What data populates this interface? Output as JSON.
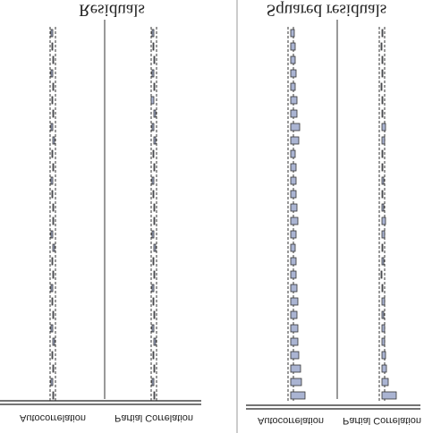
{
  "chart_data": [
    {
      "type": "correlogram",
      "title": "Residuals",
      "bound": 0.03,
      "series": [
        {
          "name": "Autocorrelation",
          "color": "#aab4d2",
          "values": [
            0.01,
            -0.02,
            0.01,
            -0.01,
            0.02,
            -0.02,
            0.01,
            -0.01,
            -0.02,
            0.01,
            -0.01,
            0.02,
            -0.02,
            0.01,
            0.01,
            -0.01,
            -0.02,
            0.01,
            -0.01,
            0.02,
            -0.02,
            0.01,
            -0.01,
            0.01,
            -0.02,
            0.01,
            -0.01,
            -0.02
          ]
        },
        {
          "name": "Partial Correlation",
          "color": "#aab4d2",
          "values": [
            0.01,
            -0.02,
            0.01,
            -0.01,
            0.02,
            -0.02,
            0.01,
            -0.01,
            -0.02,
            0.01,
            -0.01,
            0.02,
            -0.02,
            0.01,
            0.01,
            -0.01,
            -0.02,
            0.01,
            -0.01,
            0.02,
            -0.02,
            0.02,
            -0.03,
            0.01,
            -0.02,
            0.01,
            -0.01,
            -0.02
          ]
        }
      ]
    },
    {
      "type": "correlogram",
      "title": "Squared residuals",
      "bound": 0.03,
      "series": [
        {
          "name": "Autocorrelation",
          "color": "#aab4d2",
          "values": [
            0.16,
            0.12,
            0.11,
            0.09,
            0.08,
            0.08,
            0.07,
            0.08,
            0.07,
            0.06,
            0.06,
            0.05,
            0.06,
            0.08,
            0.07,
            0.06,
            0.06,
            0.06,
            0.05,
            0.09,
            0.1,
            0.07,
            0.07,
            0.05,
            0.06,
            0.05,
            0.05,
            0.04
          ]
        },
        {
          "name": "Partial Correlation",
          "color": "#aab4d2",
          "values": [
            0.16,
            0.07,
            0.05,
            0.04,
            0.03,
            0.03,
            0.02,
            0.03,
            0.01,
            -0.01,
            0.02,
            0.01,
            0.03,
            0.04,
            0.02,
            0.01,
            0.02,
            0.01,
            0.01,
            0.03,
            0.04,
            0.01,
            0.01,
            -0.01,
            0.01,
            0.01,
            -0.01,
            0.01
          ]
        }
      ]
    }
  ]
}
